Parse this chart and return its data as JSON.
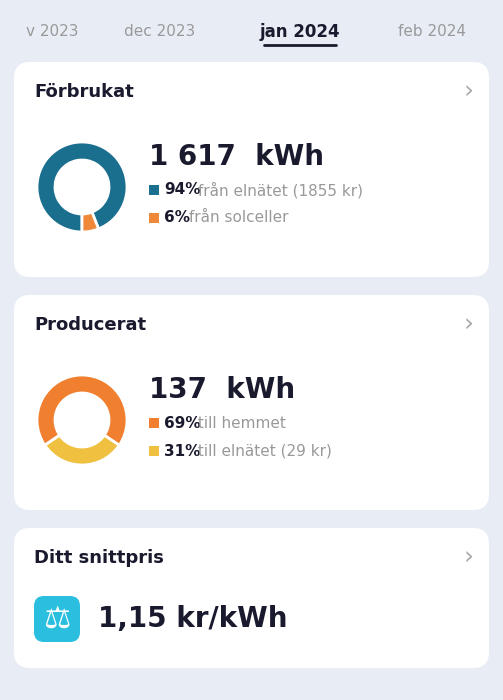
{
  "bg_color": "#e8edf5",
  "card_color": "#ffffff",
  "nav_months": [
    "v 2023",
    "dec 2023",
    "jan 2024",
    "feb 2024"
  ],
  "nav_active_idx": 2,
  "section1_title": "Förbrukat",
  "forbrukat_kwh": "1 617  kWh",
  "forbrukat_pct1": 94,
  "forbrukat_pct2": 6,
  "forbrukat_color1": "#1a6e8e",
  "forbrukat_color2": "#f0883a",
  "forbrukat_label1_bold": "94%",
  "forbrukat_label1_rest": " från elnätet (1855 kr)",
  "forbrukat_label2_bold": "6%",
  "forbrukat_label2_rest": " från solceller",
  "section2_title": "Producerat",
  "producerat_kwh": "137  kWh",
  "producerat_pct1": 69,
  "producerat_pct2": 31,
  "producerat_color1": "#f08030",
  "producerat_color2": "#f0c040",
  "producerat_label1_bold": "69%",
  "producerat_label1_rest": " till hemmet",
  "producerat_label2_bold": "31%",
  "producerat_label2_rest": " till elnätet (29 kr)",
  "section3_title": "Ditt snittpris",
  "snittpris": "1,15 kr/kWh",
  "snittpris_icon_color": "#2bbfdf",
  "arrow_color": "#aaaaaa",
  "text_dark": "#1a1a2e",
  "text_gray": "#999999"
}
